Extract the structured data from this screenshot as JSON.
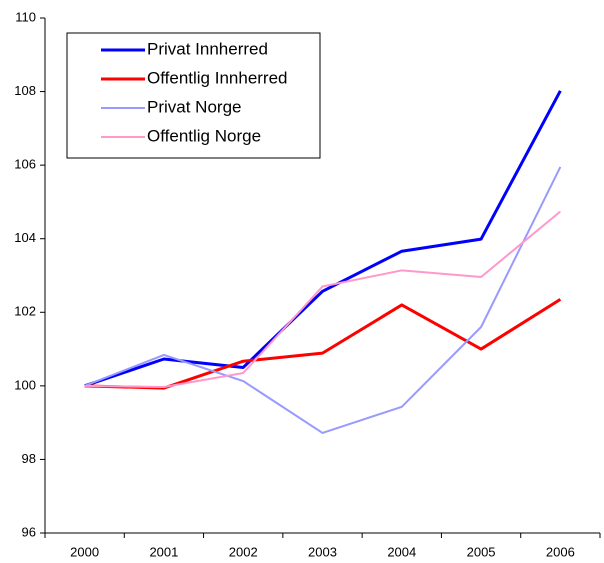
{
  "chart_data": {
    "type": "line",
    "categories": [
      "2000",
      "2001",
      "2002",
      "2003",
      "2004",
      "2005",
      "2006"
    ],
    "series": [
      {
        "name": "Privat Innherred",
        "color": "#0000ff",
        "values": [
          100,
          100.73,
          100.5,
          102.57,
          103.66,
          103.99,
          108.02
        ]
      },
      {
        "name": "Offentlig Innherred",
        "color": "#ff0000",
        "values": [
          100,
          99.94,
          100.67,
          100.89,
          102.2,
          101.0,
          102.35
        ]
      },
      {
        "name": "Privat Norge",
        "color": "#9999ff",
        "values": [
          100,
          100.84,
          100.13,
          98.72,
          99.43,
          101.6,
          105.95
        ]
      },
      {
        "name": "Offentlig Norge",
        "color": "#ff99cc",
        "values": [
          100,
          99.97,
          100.35,
          102.7,
          103.14,
          102.96,
          104.74
        ]
      }
    ],
    "ylim": [
      96,
      110
    ],
    "yticks": [
      96,
      98,
      100,
      102,
      104,
      106,
      108,
      110
    ],
    "grid": false,
    "legend": "top-left"
  }
}
